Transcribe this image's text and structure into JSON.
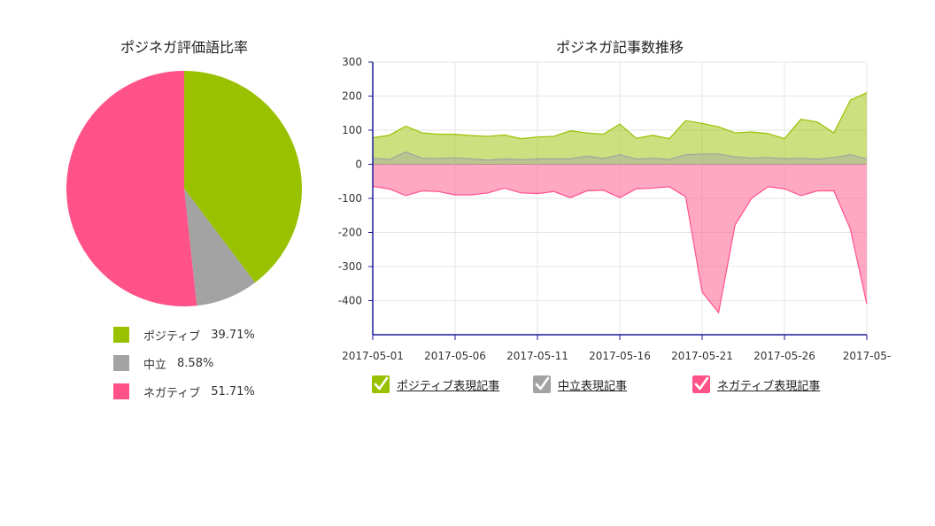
{
  "pie": {
    "title": "ポジネガ評価語比率",
    "legend": [
      {
        "label": "ポジティブ",
        "percent": "39.71%"
      },
      {
        "label": "中立",
        "percent": "8.58%"
      },
      {
        "label": "ネガティブ",
        "percent": "51.71%"
      }
    ]
  },
  "line": {
    "title": "ポジネガ記事数推移",
    "legend": [
      {
        "label": "ポジティブ表現記事",
        "icon": "check-icon"
      },
      {
        "label": "中立表現記事",
        "icon": "check-icon"
      },
      {
        "label": "ネガティブ表現記事",
        "icon": "check-icon"
      }
    ]
  },
  "colors": {
    "positive": "#99c100",
    "neutral": "#a3a3a3",
    "negative": "#ff5288",
    "axis": "#1a1a99"
  },
  "chart_data": [
    {
      "type": "pie",
      "title": "ポジネガ評価語比率",
      "labels": [
        "ポジティブ",
        "中立",
        "ネガティブ"
      ],
      "values": [
        39.71,
        8.58,
        51.71
      ],
      "colors": [
        "#99c100",
        "#a3a3a3",
        "#ff5288"
      ],
      "legend": "bottom"
    },
    {
      "type": "area",
      "title": "ポジネガ記事数推移",
      "x": [
        "2017-05-01",
        "2017-05-02",
        "2017-05-03",
        "2017-05-04",
        "2017-05-05",
        "2017-05-06",
        "2017-05-07",
        "2017-05-08",
        "2017-05-09",
        "2017-05-10",
        "2017-05-11",
        "2017-05-12",
        "2017-05-13",
        "2017-05-14",
        "2017-05-15",
        "2017-05-16",
        "2017-05-17",
        "2017-05-18",
        "2017-05-19",
        "2017-05-20",
        "2017-05-21",
        "2017-05-22",
        "2017-05-23",
        "2017-05-24",
        "2017-05-25",
        "2017-05-26",
        "2017-05-27",
        "2017-05-28",
        "2017-05-29",
        "2017-05-30",
        "2017-05-31"
      ],
      "x_tick_labels": [
        "2017-05-01",
        "2017-05-06",
        "2017-05-11",
        "2017-05-16",
        "2017-05-21",
        "2017-05-26",
        "2017-05-"
      ],
      "y_ticks": [
        300,
        200,
        100,
        0,
        -100,
        -200,
        -300,
        -400
      ],
      "ylim": [
        -500,
        300
      ],
      "grid": true,
      "legend": "bottom",
      "series": [
        {
          "name": "ポジティブ表現記事",
          "color": "#99c100",
          "values": [
            78,
            85,
            112,
            92,
            88,
            88,
            84,
            82,
            86,
            75,
            80,
            82,
            98,
            92,
            88,
            118,
            76,
            85,
            75,
            128,
            120,
            110,
            92,
            95,
            90,
            75,
            132,
            124,
            92,
            188,
            210
          ]
        },
        {
          "name": "中立表現記事",
          "color": "#a3a3a3",
          "values": [
            18,
            14,
            36,
            18,
            17,
            19,
            16,
            12,
            16,
            13,
            16,
            16,
            16,
            24,
            17,
            28,
            15,
            18,
            14,
            28,
            30,
            30,
            22,
            18,
            20,
            16,
            18,
            15,
            20,
            28,
            16
          ]
        },
        {
          "name": "ネガティブ表現記事",
          "color": "#ff5288",
          "values": [
            -65,
            -72,
            -92,
            -78,
            -80,
            -90,
            -90,
            -84,
            -70,
            -84,
            -86,
            -80,
            -98,
            -78,
            -76,
            -98,
            -72,
            -70,
            -66,
            -95,
            -375,
            -435,
            -178,
            -100,
            -66,
            -72,
            -92,
            -78,
            -78,
            -190,
            -410
          ]
        }
      ]
    }
  ]
}
